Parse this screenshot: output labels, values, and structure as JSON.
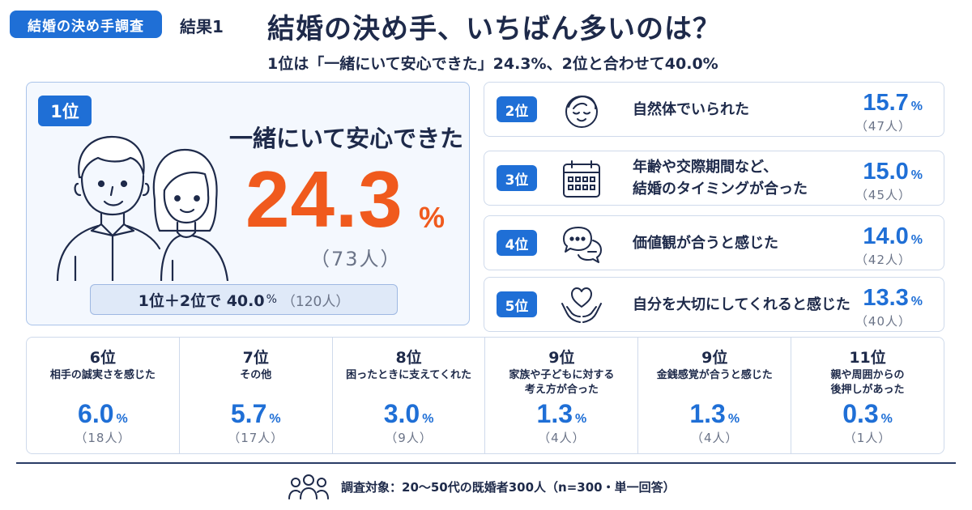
{
  "header": {
    "tag": "結婚の決め手調査",
    "result_label": "結果1",
    "title": "結婚の決め手、いちばん多いのは？",
    "subtitle": "1位は「一緒にいて安心できた」24.3%、2位と合わせて40.0%"
  },
  "rank1": {
    "badge": "1位",
    "label": "一緒にいて安心できた",
    "value": "24.3",
    "unit": "%",
    "count": "（73人）",
    "illustration": "couple-icon",
    "combined": {
      "text": "1位＋2位で 40.0",
      "unit": "%",
      "count": "（120人）"
    }
  },
  "ranks": [
    {
      "badge": "2位",
      "icon": "relaxed-face-icon",
      "label": "自然体でいられた",
      "value": "15.7",
      "unit": "%",
      "count": "（47人）"
    },
    {
      "badge": "3位",
      "icon": "calendar-icon",
      "label": "年齢や交際期間など、\n結婚のタイミングが合った",
      "value": "15.0",
      "unit": "%",
      "count": "（45人）"
    },
    {
      "badge": "4位",
      "icon": "chat-bubbles-icon",
      "label": "価値観が合うと感じた",
      "value": "14.0",
      "unit": "%",
      "count": "（42人）"
    },
    {
      "badge": "5位",
      "icon": "heart-hands-icon",
      "label": "自分を大切にしてくれると感じた",
      "value": "13.3",
      "unit": "%",
      "count": "（40人）"
    }
  ],
  "others": [
    {
      "rank": "6位",
      "label": "相手の誠実さを感じた",
      "value": "6.0",
      "unit": "%",
      "count": "（18人）"
    },
    {
      "rank": "7位",
      "label": "その他",
      "value": "5.7",
      "unit": "%",
      "count": "（17人）"
    },
    {
      "rank": "8位",
      "label": "困ったときに支えてくれた",
      "value": "3.0",
      "unit": "%",
      "count": "（9人）"
    },
    {
      "rank": "9位",
      "label": "家族や子どもに対する\n考え方が合った",
      "value": "1.3",
      "unit": "%",
      "count": "（4人）"
    },
    {
      "rank": "9位",
      "label": "金銭感覚が合うと感じた",
      "value": "1.3",
      "unit": "%",
      "count": "（4人）"
    },
    {
      "rank": "11位",
      "label": "親や周囲からの\n後押しがあった",
      "value": "0.3",
      "unit": "%",
      "count": "（1人）"
    }
  ],
  "footer": {
    "icon": "people-group-icon",
    "note": "調査対象：20～50代の既婚者300人（n=300・単一回答）"
  },
  "colors": {
    "accent": "#1f6fd6",
    "highlight": "#f05a1d",
    "text": "#1e2a4a",
    "muted": "#6b7488"
  }
}
